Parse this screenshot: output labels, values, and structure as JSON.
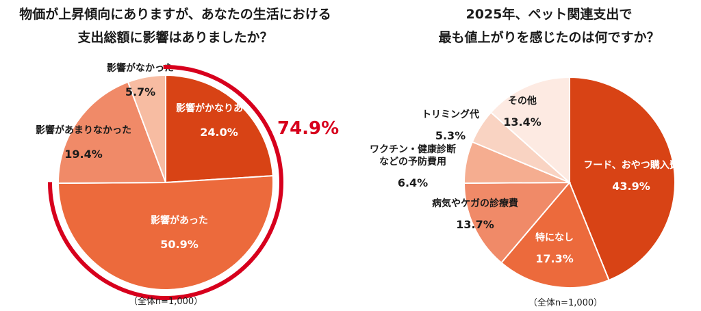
{
  "chart_data": [
    {
      "type": "pie",
      "title": "物価が上昇傾向にありますが、あなたの生活における支出総額に影響はありましたか？",
      "title_lines": [
        "物価が上昇傾向にありますが、あなたの生活における",
        "支出総額に影響はありましたか？"
      ],
      "note": "（全体n=1,000）",
      "highlight": {
        "label": "74.9%",
        "value": 74.9,
        "color": "#d7001d"
      },
      "slices": [
        {
          "label": "影響がかなりあった",
          "value": 24.0,
          "pct": "24.0%",
          "color": "#d84315",
          "label_color": "#ffffff"
        },
        {
          "label": "影響があった",
          "value": 50.9,
          "pct": "50.9%",
          "color": "#ec6a3c",
          "label_color": "#ffffff"
        },
        {
          "label": "影響があまりなかった",
          "value": 19.4,
          "pct": "19.4%",
          "color": "#f08a68",
          "label_color": "#1a1a1a"
        },
        {
          "label": "影響がなかった",
          "value": 5.7,
          "pct": "5.7%",
          "color": "#f7bca2",
          "label_color": "#1a1a1a"
        }
      ]
    },
    {
      "type": "pie",
      "title": "2025年、ペット関連支出で最も値上がりを感じたのは何ですか？",
      "title_lines": [
        "2025年、ペット関連支出で",
        "最も値上がりを感じたのは何ですか？"
      ],
      "note": "（全体n=1,000）",
      "slices": [
        {
          "label": "フード、おやつ購入費",
          "value": 43.9,
          "pct": "43.9%",
          "color": "#d84315",
          "label_color": "#ffffff"
        },
        {
          "label": "特になし",
          "value": 17.3,
          "pct": "17.3%",
          "color": "#ec6a3c",
          "label_color": "#ffffff"
        },
        {
          "label": "病気やケガの診療費",
          "value": 13.7,
          "pct": "13.7%",
          "color": "#f08a68",
          "label_color": "#1a1a1a"
        },
        {
          "label": "ワクチン・健康診断\nなどの予防費用",
          "value": 6.4,
          "pct": "6.4%",
          "color": "#f5ad90",
          "label_color": "#1a1a1a"
        },
        {
          "label": "トリミング代",
          "value": 5.3,
          "pct": "5.3%",
          "color": "#f9d3c2",
          "label_color": "#1a1a1a"
        },
        {
          "label": "その他",
          "value": 13.4,
          "pct": "13.4%",
          "color": "#fdeae2",
          "label_color": "#1a1a1a"
        }
      ]
    }
  ]
}
